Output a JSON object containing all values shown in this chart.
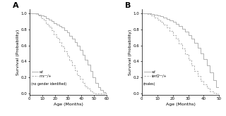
{
  "panel_A": {
    "title": "A",
    "xlabel": "Age (Months)",
    "ylabel": "Survival (Probability)",
    "xlim": [
      0,
      60
    ],
    "ylim": [
      -0.02,
      1.05
    ],
    "xticks": [
      0,
      10,
      20,
      30,
      40,
      50,
      60
    ],
    "yticks": [
      0.0,
      0.2,
      0.4,
      0.6,
      0.8,
      1.0
    ],
    "wt_x": [
      0,
      5,
      7,
      9,
      11,
      13,
      15,
      17,
      19,
      21,
      23,
      25,
      27,
      29,
      31,
      33,
      35,
      37,
      39,
      41,
      43,
      45,
      47,
      49,
      51,
      53,
      55,
      57,
      59,
      60
    ],
    "wt_y": [
      1.0,
      1.0,
      0.98,
      0.97,
      0.96,
      0.94,
      0.92,
      0.9,
      0.88,
      0.86,
      0.84,
      0.82,
      0.79,
      0.76,
      0.72,
      0.68,
      0.64,
      0.6,
      0.54,
      0.48,
      0.42,
      0.36,
      0.28,
      0.2,
      0.13,
      0.08,
      0.04,
      0.02,
      0.01,
      0.0
    ],
    "mut_x": [
      0,
      5,
      7,
      9,
      11,
      13,
      15,
      17,
      19,
      21,
      23,
      25,
      27,
      29,
      31,
      33,
      35,
      37,
      39,
      41,
      43,
      45,
      47,
      49,
      51,
      53,
      55,
      57,
      59,
      60
    ],
    "mut_y": [
      1.0,
      0.99,
      0.97,
      0.94,
      0.91,
      0.87,
      0.83,
      0.79,
      0.74,
      0.69,
      0.64,
      0.59,
      0.53,
      0.47,
      0.41,
      0.35,
      0.29,
      0.23,
      0.18,
      0.13,
      0.09,
      0.06,
      0.03,
      0.01,
      0.0,
      0.0,
      0.0,
      0.0,
      0.0,
      0.0
    ],
    "wt_color": "#b0b0b0",
    "mut_color": "#b0b0b0",
    "legend_wt": "wt",
    "legend_mut": "nrsᵐʳ/+",
    "legend_note": "(no gender identified)"
  },
  "panel_B": {
    "title": "B",
    "xlabel": "Age (Months)",
    "ylabel": "Survival (Probability)",
    "xlim": [
      0,
      50
    ],
    "ylim": [
      -0.02,
      1.05
    ],
    "xticks": [
      0,
      10,
      20,
      30,
      40,
      50
    ],
    "yticks": [
      0.0,
      0.2,
      0.4,
      0.6,
      0.8,
      1.0
    ],
    "wt_x": [
      0,
      4,
      6,
      8,
      10,
      12,
      14,
      16,
      18,
      20,
      22,
      24,
      26,
      28,
      30,
      32,
      34,
      36,
      38,
      40,
      42,
      44,
      46,
      48,
      50
    ],
    "wt_y": [
      1.0,
      1.0,
      0.99,
      0.98,
      0.97,
      0.96,
      0.95,
      0.93,
      0.91,
      0.89,
      0.87,
      0.84,
      0.81,
      0.77,
      0.73,
      0.68,
      0.63,
      0.57,
      0.5,
      0.43,
      0.35,
      0.26,
      0.17,
      0.08,
      0.01
    ],
    "mut_x": [
      0,
      4,
      6,
      8,
      10,
      12,
      14,
      16,
      18,
      20,
      22,
      24,
      26,
      28,
      30,
      32,
      34,
      36,
      38,
      40,
      42,
      44,
      46,
      48,
      50
    ],
    "mut_y": [
      1.0,
      0.99,
      0.97,
      0.95,
      0.92,
      0.89,
      0.86,
      0.82,
      0.78,
      0.73,
      0.68,
      0.62,
      0.56,
      0.49,
      0.42,
      0.35,
      0.28,
      0.22,
      0.16,
      0.11,
      0.07,
      0.03,
      0.01,
      0.0,
      0.0
    ],
    "wt_color": "#b0b0b0",
    "mut_color": "#b0b0b0",
    "legend_wt": "wt",
    "legend_mut": "terf2ᵐʳ/+",
    "legend_note": "(males)"
  }
}
